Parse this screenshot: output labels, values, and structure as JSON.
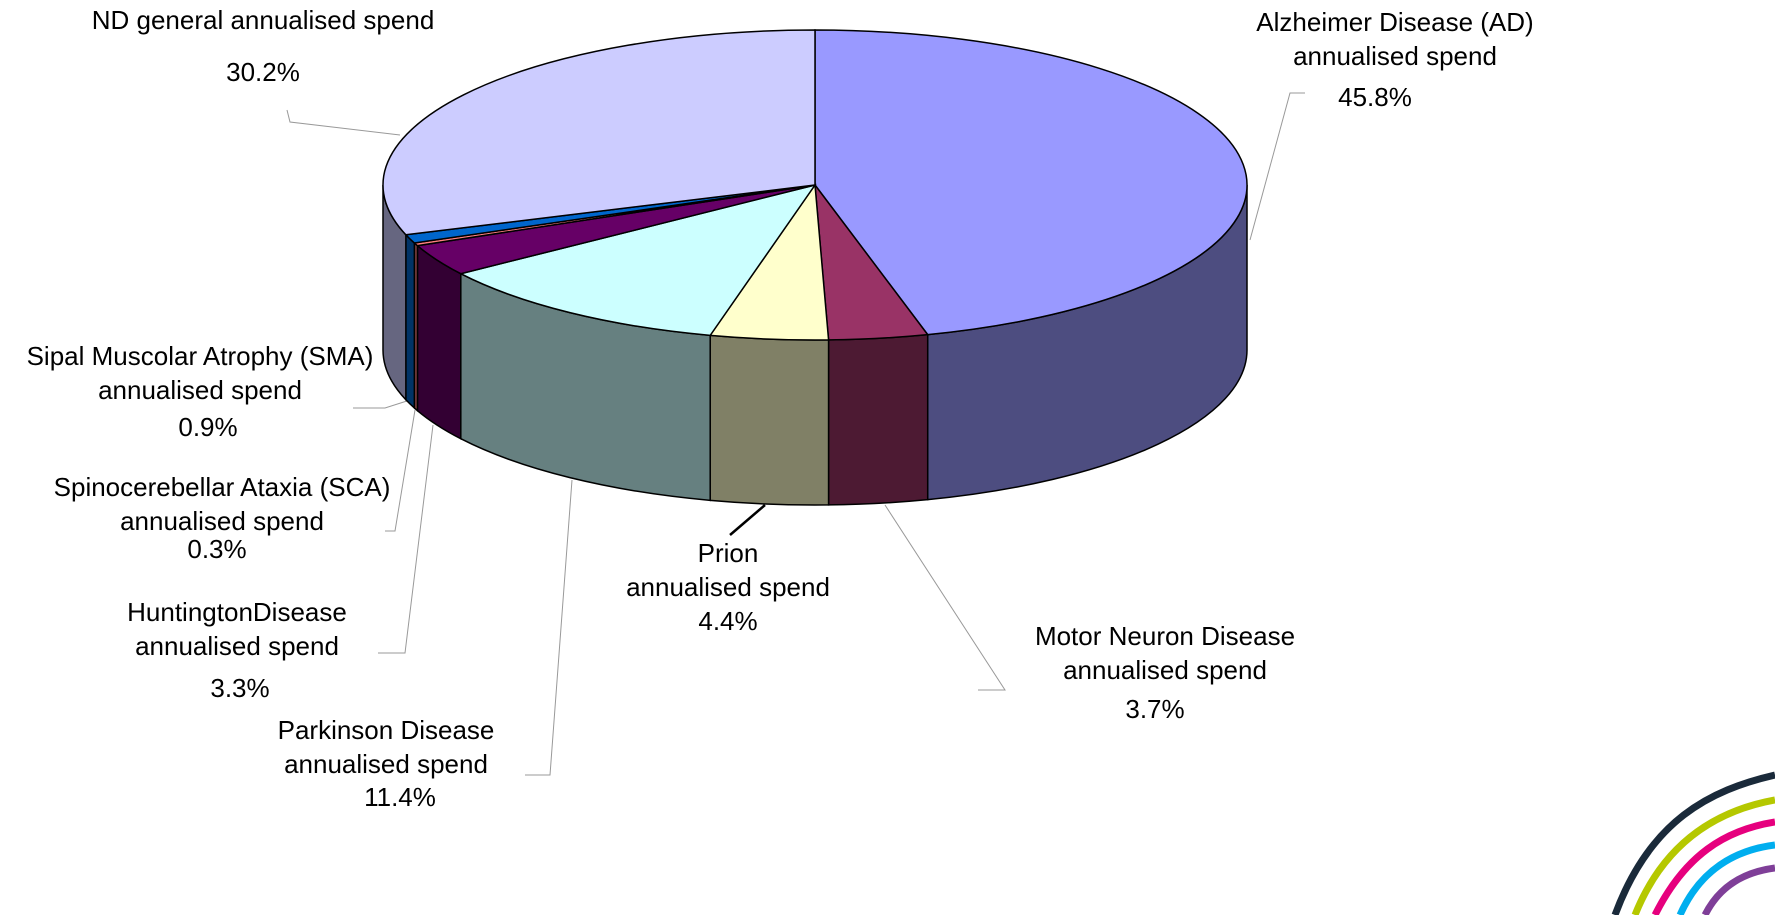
{
  "chart_data": {
    "type": "pie",
    "categories": [
      "Alzheimer Disease (AD)\nannualised spend",
      "Motor Neuron Disease\nannualised spend",
      "Prion\nannualised spend",
      "Parkinson Disease\nannualised spend",
      "HuntingtonDisease\nannualised spend",
      "Spinocerebellar Ataxia (SCA)\nannualised spend",
      "Sipal Muscolar Atrophy (SMA)\nannualised spend",
      "ND general annualised spend"
    ],
    "values": [
      45.8,
      3.7,
      4.4,
      11.4,
      3.3,
      0.3,
      0.9,
      30.2
    ],
    "value_labels": [
      "45.8%",
      "3.7%",
      "4.4%",
      "11.4%",
      "3.3%",
      "0.3%",
      "0.9%",
      "30.2%"
    ],
    "colors": [
      "#9999ff",
      "#993366",
      "#ffffcc",
      "#ccffff",
      "#660066",
      "#ff8080",
      "#0066cc",
      "#ccccff"
    ]
  }
}
